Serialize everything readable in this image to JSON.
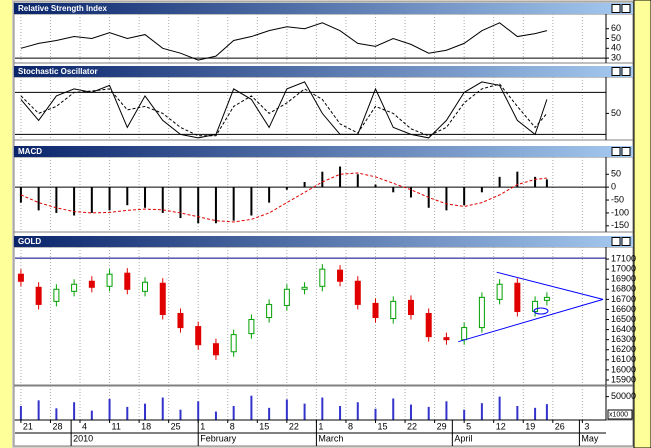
{
  "chart_data": {
    "type": "multi-panel",
    "x": [
      0,
      3,
      6,
      9,
      12,
      15,
      18,
      21,
      24,
      27,
      30,
      33,
      36,
      39,
      42,
      45,
      48,
      51,
      54,
      57,
      60,
      63,
      66,
      69,
      72,
      75,
      78,
      81,
      84,
      87,
      89
    ],
    "xlim": [
      -1,
      99
    ],
    "xticks": [
      {
        "value": 0,
        "label": "21"
      },
      {
        "value": 5,
        "label": "28"
      },
      {
        "value": 10,
        "label": "4"
      },
      {
        "value": 15,
        "label": "11"
      },
      {
        "value": 20,
        "label": "18"
      },
      {
        "value": 25,
        "label": "25"
      },
      {
        "value": 30,
        "label": "1"
      },
      {
        "value": 35,
        "label": "8"
      },
      {
        "value": 40,
        "label": "15"
      },
      {
        "value": 45,
        "label": "22"
      },
      {
        "value": 50,
        "label": "1"
      },
      {
        "value": 55,
        "label": "8"
      },
      {
        "value": 60,
        "label": "15"
      },
      {
        "value": 65,
        "label": "22"
      },
      {
        "value": 70,
        "label": "29"
      },
      {
        "value": 75,
        "label": "5"
      },
      {
        "value": 80,
        "label": "12"
      },
      {
        "value": 85,
        "label": "19"
      },
      {
        "value": 90,
        "label": "26"
      },
      {
        "value": 95,
        "label": "3"
      }
    ],
    "month_ticks": [
      {
        "value": 8.5,
        "label": "2010"
      },
      {
        "value": 30,
        "label": "February"
      },
      {
        "value": 50,
        "label": "March"
      },
      {
        "value": 73,
        "label": "April"
      },
      {
        "value": 94.5,
        "label": "May"
      }
    ],
    "grid": true,
    "panels": [
      {
        "title": "Relative Strength Index",
        "ylim": [
          25,
          75
        ],
        "yticks": [
          30,
          40,
          50,
          60
        ],
        "reference_lines": [
          30
        ],
        "series": [
          {
            "type": "line",
            "color": "#000000",
            "dashed": false,
            "values": [
              40,
              45,
              48,
              52,
              50,
              56,
              50,
              54,
              40,
              35,
              28,
              32,
              48,
              52,
              58,
              62,
              60,
              66,
              58,
              45,
              42,
              50,
              44,
              35,
              38,
              45,
              58,
              66,
              52,
              55,
              58
            ]
          }
        ]
      },
      {
        "title": "Stochastic Oscillator",
        "ylim": [
          12,
          102
        ],
        "yticks": [
          50
        ],
        "reference_lines": [
          20,
          80
        ],
        "series": [
          {
            "type": "line",
            "color": "#000000",
            "dashed": false,
            "values": [
              70,
              40,
              75,
              85,
              80,
              90,
              30,
              75,
              40,
              20,
              15,
              20,
              85,
              70,
              30,
              85,
              95,
              50,
              20,
              20,
              85,
              30,
              20,
              15,
              40,
              80,
              95,
              90,
              40,
              20,
              70
            ]
          },
          {
            "type": "line",
            "color": "#000000",
            "dashed": true,
            "values": [
              75,
              50,
              60,
              80,
              82,
              85,
              55,
              60,
              50,
              30,
              18,
              18,
              60,
              75,
              50,
              65,
              85,
              70,
              35,
              22,
              60,
              50,
              28,
              18,
              30,
              65,
              85,
              92,
              60,
              30,
              50
            ]
          }
        ]
      },
      {
        "title": "MACD",
        "ylim": [
          -174,
          117
        ],
        "yticks": [
          50,
          0,
          -50,
          -100,
          -150
        ],
        "reference_lines": [
          0
        ],
        "series": [
          {
            "type": "bar",
            "color": "#000000",
            "dashed": false,
            "values": [
              -60,
              -90,
              -100,
              -110,
              -100,
              -90,
              -70,
              -80,
              -100,
              -120,
              -140,
              -140,
              -130,
              -110,
              -60,
              -10,
              20,
              60,
              80,
              50,
              10,
              -20,
              -40,
              -80,
              -90,
              -70,
              -20,
              40,
              60,
              40,
              30
            ]
          },
          {
            "type": "line",
            "color": "#e00000",
            "dashed": true,
            "values": [
              -30,
              -60,
              -80,
              -95,
              -100,
              -98,
              -90,
              -85,
              -88,
              -100,
              -115,
              -130,
              -135,
              -125,
              -100,
              -60,
              -20,
              20,
              50,
              55,
              40,
              15,
              -10,
              -40,
              -65,
              -75,
              -60,
              -30,
              10,
              30,
              35
            ]
          }
        ]
      },
      {
        "title": "GOLD",
        "ylim": [
          15850,
          17220
        ],
        "yticks": [
          15900,
          16000,
          16100,
          16200,
          16300,
          16400,
          16500,
          16600,
          16700,
          16800,
          16900,
          17000,
          17100
        ],
        "reference_lines": [
          17110
        ],
        "reference_color": "#000080",
        "trendlines": [
          {
            "color": "#0000ff",
            "points": [
              [
                80.5,
                16970
              ],
              [
                98.5,
                16700
              ]
            ]
          },
          {
            "color": "#0000ff",
            "points": [
              [
                74,
                16280
              ],
              [
                98.5,
                16700
              ]
            ]
          }
        ],
        "series": [
          {
            "type": "candlestick",
            "up_color": "#00a000",
            "down_color": "#e00000",
            "open": [
              16950,
              16820,
              16680,
              16780,
              16880,
              16830,
              16960,
              16780,
              16860,
              16560,
              16430,
              16260,
              16180,
              16360,
              16520,
              16640,
              16800,
              16830,
              16990,
              16880,
              16660,
              16510,
              16690,
              16560,
              16320,
              16300,
              16420,
              16700,
              16860,
              16580,
              16690
            ],
            "high": [
              17000,
              16870,
              16850,
              16900,
              16930,
              17000,
              17010,
              16920,
              16910,
              16610,
              16480,
              16310,
              16400,
              16550,
              16700,
              16850,
              16870,
              17050,
              17040,
              16930,
              16710,
              16730,
              16740,
              16610,
              16370,
              16470,
              16770,
              16900,
              16910,
              16730,
              16770
            ],
            "low": [
              16830,
              16600,
              16630,
              16730,
              16770,
              16780,
              16750,
              16730,
              16500,
              16370,
              16200,
              16100,
              16130,
              16310,
              16470,
              16590,
              16750,
              16780,
              16830,
              16600,
              16470,
              16460,
              16500,
              16280,
              16250,
              16250,
              16370,
              16650,
              16530,
              16530,
              16640
            ],
            "close": [
              16880,
              16650,
              16800,
              16850,
              16820,
              16950,
              16800,
              16870,
              16550,
              16420,
              16250,
              16150,
              16350,
              16500,
              16650,
              16800,
              16820,
              17000,
              16880,
              16650,
              16520,
              16680,
              16550,
              16330,
              16300,
              16420,
              16720,
              16850,
              16580,
              16680,
              16720
            ]
          }
        ]
      },
      {
        "ylim": [
          0,
          72700
        ],
        "yticks": [
          50000
        ],
        "unit_label": "x1000",
        "series": [
          {
            "type": "bar",
            "color": "#3333cc",
            "dashed": false,
            "values": [
              30000,
              42000,
              25000,
              38000,
              20000,
              45000,
              28000,
              35000,
              48000,
              22000,
              40000,
              18000,
              30000,
              52000,
              26000,
              44000,
              35000,
              48000,
              30000,
              38000,
              24000,
              46000,
              33000,
              28000,
              40000,
              22000,
              36000,
              50000,
              30000,
              26000,
              34000
            ]
          }
        ]
      }
    ]
  }
}
